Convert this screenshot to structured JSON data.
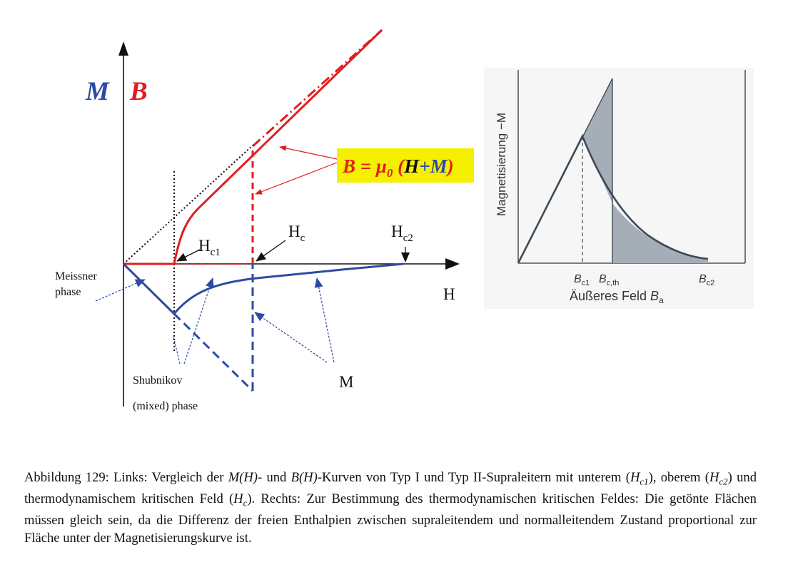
{
  "left_plot": {
    "label_M": "M",
    "label_B": "B",
    "equation": {
      "lhs": "B = μ",
      "sub": "0",
      "paren_open": " (",
      "H": "H",
      "plus": "+",
      "M": "M",
      "paren_close": ")"
    },
    "label_Hc1": {
      "main": "H",
      "sub": "c1"
    },
    "label_Hc": {
      "main": "H",
      "sub": "c"
    },
    "label_Hc2": {
      "main": "H",
      "sub": "c2"
    },
    "label_H_axis": "H",
    "label_meissner": [
      "Meissner",
      "phase"
    ],
    "label_shubnikov": [
      "Shubnikov",
      "(mixed) phase"
    ],
    "label_M_curve": "M",
    "colors": {
      "red": "#e21d1d",
      "blue": "#2e4aa5",
      "yellow": "#f4f000",
      "black": "#111111"
    }
  },
  "right_plot": {
    "ylabel": "Magnetisierung −M",
    "xlabel": {
      "prefix": "Äußeres Feld ",
      "var": "B",
      "sub": "a"
    },
    "ticks": [
      {
        "var": "B",
        "sub": "c1"
      },
      {
        "var": "B",
        "sub": "c,th"
      },
      {
        "var": "B",
        "sub": "c2"
      }
    ],
    "colors": {
      "curve": "#3c4a5a",
      "shade": "#a5adb7"
    }
  },
  "caption": {
    "prefix": "Abbildung 129: Links: Vergleich der ",
    "mh": "M(H)",
    "mid1": "- und ",
    "bh": "B(H)",
    "mid2": "-Kurven von Typ I und Typ II-Supraleitern mit unterem (",
    "hc1": "H",
    "hc1_sub": "c1",
    "mid3": "), oberem (",
    "hc2": "H",
    "hc2_sub": "c2",
    "mid4": ") und thermodynamischem kritischen Feld (",
    "hc": "H",
    "hc_sub": "c",
    "rest": "). Rechts: Zur Bestimmung des thermodynamischen kritischen Feldes: Die getönte Flächen müssen gleich sein, da die Differenz der freien Enthalpien zwischen supraleitendem und normalleitendem Zustand proportional zur Fläche unter der Magnetisierungskurve ist."
  }
}
